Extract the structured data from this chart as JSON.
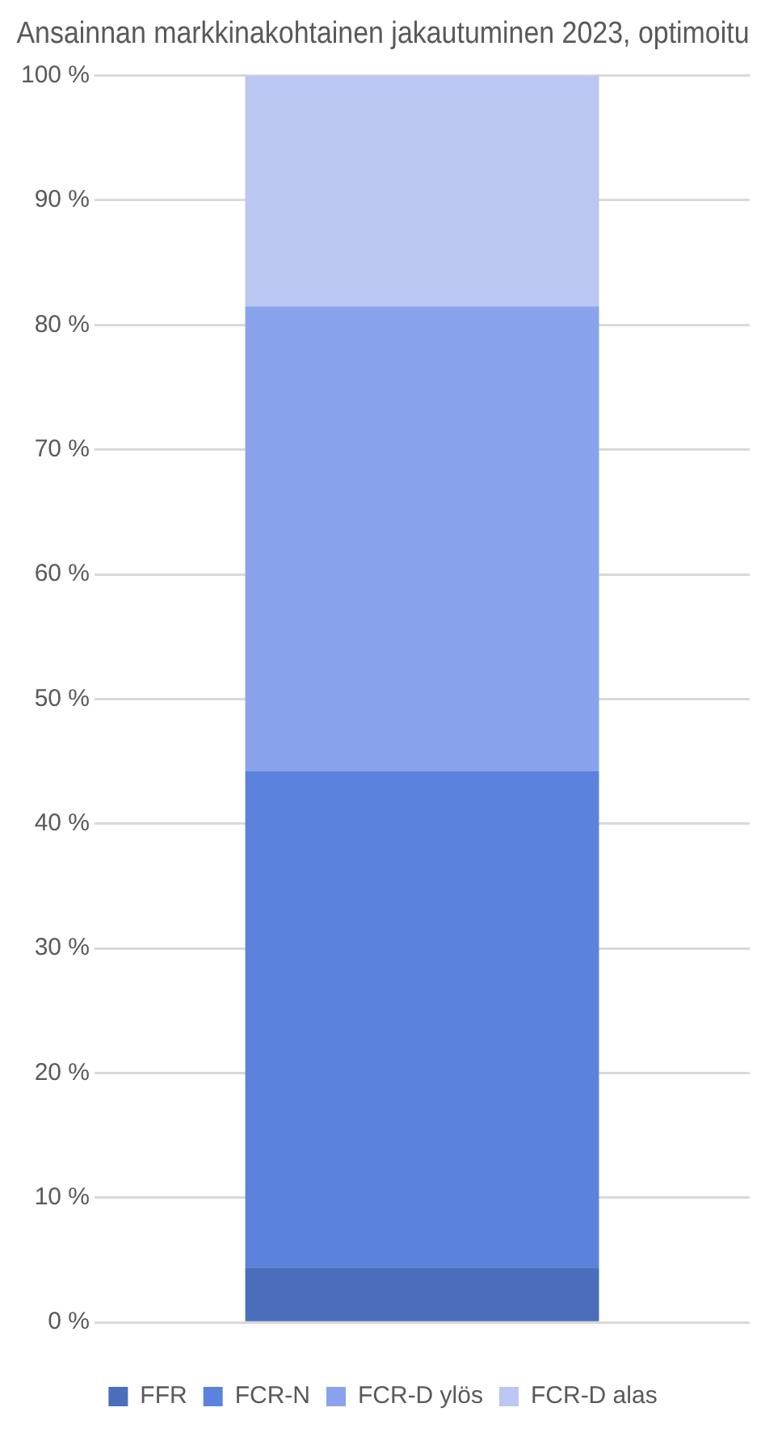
{
  "chart_data": {
    "type": "bar",
    "title": "Ansainnan markkinakohtainen jakautuminen 2023, optimoitu",
    "categories": [
      null
    ],
    "stacked": true,
    "series": [
      {
        "name": "FFR",
        "color": "#4a6ebb",
        "values": [
          4.4
        ]
      },
      {
        "name": "FCR-N",
        "color": "#5b82dc",
        "values": [
          39.8
        ]
      },
      {
        "name": "FCR-D ylös",
        "color": "#88a3ec",
        "values": [
          37.3
        ]
      },
      {
        "name": "FCR-D alas",
        "color": "#b9c7f2",
        "values": [
          18.5
        ]
      }
    ],
    "ylim": [
      0,
      100
    ],
    "yticks": [
      {
        "value": 0,
        "label": "0 %"
      },
      {
        "value": 10,
        "label": "10 %"
      },
      {
        "value": 20,
        "label": "20 %"
      },
      {
        "value": 30,
        "label": "30 %"
      },
      {
        "value": 40,
        "label": "40 %"
      },
      {
        "value": 50,
        "label": "50 %"
      },
      {
        "value": 60,
        "label": "60 %"
      },
      {
        "value": 70,
        "label": "70 %"
      },
      {
        "value": 80,
        "label": "80 %"
      },
      {
        "value": 90,
        "label": "90 %"
      },
      {
        "value": 100,
        "label": "100 %"
      }
    ],
    "grid": "y",
    "legend": "bottom"
  }
}
